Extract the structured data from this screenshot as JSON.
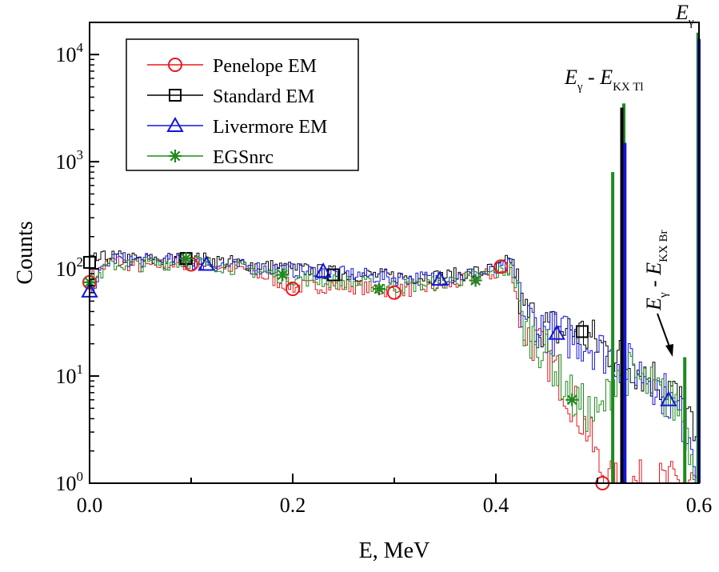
{
  "chart_data": {
    "type": "line",
    "title": "",
    "xlabel": "E, MeV",
    "ylabel": "Counts",
    "xlim": [
      0.0,
      0.6
    ],
    "ylim_log10": [
      0,
      4.3
    ],
    "yscale": "log",
    "x_ticks": [
      0.0,
      0.2,
      0.4,
      0.6
    ],
    "x_tick_labels": [
      "0.0",
      "0.2",
      "0.4",
      "0.6"
    ],
    "y_ticks": [
      {
        "value": 1,
        "base": "10",
        "exp": "0"
      },
      {
        "value": 10,
        "base": "10",
        "exp": "1"
      },
      {
        "value": 100,
        "base": "10",
        "exp": "2"
      },
      {
        "value": 1000,
        "base": "10",
        "exp": "3"
      },
      {
        "value": 10000,
        "base": "10",
        "exp": "4"
      }
    ],
    "legend_position": "top-left",
    "series": [
      {
        "name": "Penelope EM",
        "color": "#e8191e",
        "marker": "circle",
        "markers": [
          [
            0.0,
            75
          ],
          [
            0.1,
            110
          ],
          [
            0.2,
            65
          ],
          [
            0.3,
            60
          ],
          [
            0.405,
            105
          ],
          [
            0.505,
            1
          ]
        ],
        "points": [
          [
            0.0,
            80
          ],
          [
            0.02,
            120
          ],
          [
            0.05,
            105
          ],
          [
            0.1,
            115
          ],
          [
            0.15,
            100
          ],
          [
            0.2,
            68
          ],
          [
            0.25,
            70
          ],
          [
            0.3,
            62
          ],
          [
            0.35,
            70
          ],
          [
            0.4,
            92
          ],
          [
            0.415,
            95
          ],
          [
            0.425,
            28
          ],
          [
            0.45,
            15
          ],
          [
            0.47,
            7
          ],
          [
            0.49,
            3
          ],
          [
            0.5,
            1.5
          ],
          [
            0.51,
            1
          ]
        ]
      },
      {
        "name": "Standard EM",
        "color": "#000000",
        "marker": "square",
        "markers": [
          [
            0.0,
            115
          ],
          [
            0.095,
            125
          ],
          [
            0.24,
            88
          ],
          [
            0.485,
            26
          ]
        ],
        "points": [
          [
            0.0,
            118
          ],
          [
            0.02,
            130
          ],
          [
            0.05,
            120
          ],
          [
            0.1,
            125
          ],
          [
            0.15,
            112
          ],
          [
            0.2,
            100
          ],
          [
            0.25,
            90
          ],
          [
            0.3,
            85
          ],
          [
            0.35,
            85
          ],
          [
            0.4,
            100
          ],
          [
            0.415,
            125
          ],
          [
            0.425,
            40
          ],
          [
            0.45,
            28
          ],
          [
            0.48,
            26
          ],
          [
            0.5,
            20
          ],
          [
            0.52,
            15
          ],
          [
            0.55,
            10
          ],
          [
            0.57,
            8
          ],
          [
            0.59,
            4
          ],
          [
            0.6,
            1
          ]
        ]
      },
      {
        "name": "Livermore EM",
        "color": "#1515dc",
        "marker": "triangle",
        "markers": [
          [
            0.0,
            62
          ],
          [
            0.115,
            110
          ],
          [
            0.23,
            95
          ],
          [
            0.345,
            80
          ],
          [
            0.46,
            25
          ],
          [
            0.57,
            6
          ]
        ],
        "points": [
          [
            0.0,
            65
          ],
          [
            0.02,
            125
          ],
          [
            0.05,
            120
          ],
          [
            0.1,
            115
          ],
          [
            0.15,
            105
          ],
          [
            0.2,
            96
          ],
          [
            0.25,
            90
          ],
          [
            0.3,
            82
          ],
          [
            0.35,
            82
          ],
          [
            0.4,
            95
          ],
          [
            0.415,
            110
          ],
          [
            0.425,
            38
          ],
          [
            0.45,
            26
          ],
          [
            0.48,
            22
          ],
          [
            0.5,
            18
          ],
          [
            0.52,
            14
          ],
          [
            0.55,
            10
          ],
          [
            0.57,
            6
          ],
          [
            0.59,
            3
          ],
          [
            0.6,
            1
          ]
        ]
      },
      {
        "name": "EGSnrc",
        "color": "#1e8a1e",
        "marker": "star",
        "markers": [
          [
            0.0,
            75
          ],
          [
            0.095,
            125
          ],
          [
            0.19,
            88
          ],
          [
            0.285,
            65
          ],
          [
            0.38,
            78
          ],
          [
            0.475,
            6
          ]
        ],
        "points": [
          [
            0.0,
            75
          ],
          [
            0.02,
            110
          ],
          [
            0.05,
            110
          ],
          [
            0.1,
            118
          ],
          [
            0.15,
            100
          ],
          [
            0.2,
            82
          ],
          [
            0.25,
            75
          ],
          [
            0.3,
            68
          ],
          [
            0.35,
            75
          ],
          [
            0.4,
            92
          ],
          [
            0.415,
            100
          ],
          [
            0.425,
            30
          ],
          [
            0.45,
            16
          ],
          [
            0.475,
            6
          ],
          [
            0.5,
            4
          ],
          [
            0.52,
            12
          ],
          [
            0.55,
            8
          ],
          [
            0.58,
            5
          ],
          [
            0.6,
            1
          ]
        ]
      }
    ],
    "peaks": [
      {
        "x": 0.526,
        "y": 3500,
        "color": "#1e8a1e"
      },
      {
        "x": 0.524,
        "y": 3200,
        "color": "#000000"
      },
      {
        "x": 0.515,
        "y": 800,
        "color": "#1e8a1e"
      },
      {
        "x": 0.527,
        "y": 1500,
        "color": "#1515dc"
      },
      {
        "x": 0.599,
        "y": 16000,
        "color": "#1e8a1e"
      },
      {
        "x": 0.6,
        "y": 14000,
        "color": "#1515dc"
      },
      {
        "x": 0.586,
        "y": 15,
        "color": "#1e8a1e"
      }
    ],
    "annotations": [
      {
        "id": "egamma",
        "base": "E",
        "sub": "γ"
      },
      {
        "id": "kx_tl",
        "base": "E",
        "sub": "γ",
        "op": " - ",
        "base2": "E",
        "sub2": "KX Tl"
      },
      {
        "id": "kx_br",
        "base": "E",
        "sub": "γ",
        "op": " - ",
        "base2": "E",
        "sub2": "KX Br"
      }
    ]
  }
}
